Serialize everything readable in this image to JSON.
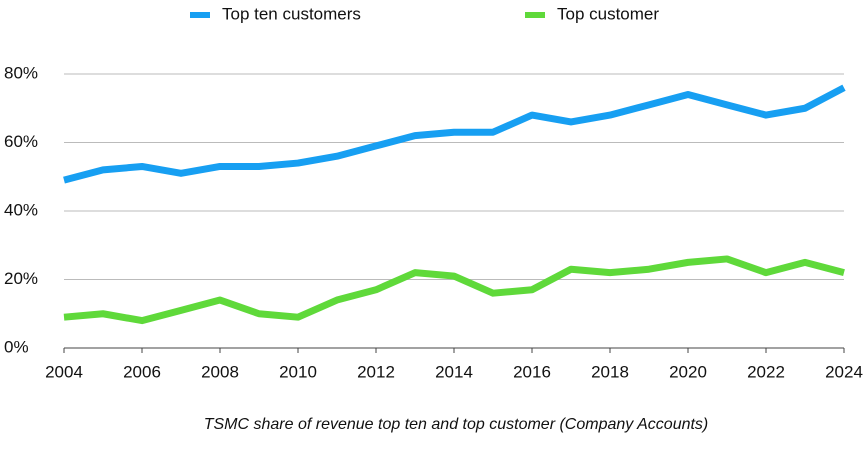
{
  "chart_data": {
    "type": "line",
    "caption": "TSMC share of revenue top ten and top customer (Company Accounts)",
    "x": [
      2004,
      2005,
      2006,
      2007,
      2008,
      2009,
      2010,
      2011,
      2012,
      2013,
      2014,
      2015,
      2016,
      2017,
      2018,
      2019,
      2020,
      2021,
      2022,
      2023,
      2024
    ],
    "series": [
      {
        "name": "Top ten customers",
        "color": "#179ff2",
        "values": [
          49,
          52,
          53,
          51,
          53,
          53,
          54,
          56,
          59,
          62,
          63,
          63,
          68,
          66,
          68,
          71,
          74,
          71,
          68,
          70,
          76
        ]
      },
      {
        "name": "Top customer",
        "color": "#5fd93a",
        "values": [
          9,
          10,
          8,
          11,
          14,
          10,
          9,
          14,
          17,
          22,
          21,
          16,
          17,
          23,
          22,
          23,
          25,
          26,
          22,
          25,
          22
        ]
      }
    ],
    "xlim": [
      2004,
      2024
    ],
    "xticks": [
      2004,
      2006,
      2008,
      2010,
      2012,
      2014,
      2016,
      2018,
      2020,
      2022,
      2024
    ],
    "ylim": [
      0,
      80
    ],
    "yticks": [
      {
        "value": 0,
        "label": "0%"
      },
      {
        "value": 20,
        "label": "20%"
      },
      {
        "value": 40,
        "label": "40%"
      },
      {
        "value": 60,
        "label": "60%"
      },
      {
        "value": 80,
        "label": "80%"
      }
    ],
    "grid": true,
    "legend": "top"
  }
}
